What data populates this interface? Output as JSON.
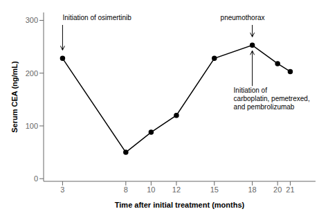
{
  "chart_data": {
    "type": "line",
    "x": [
      3,
      8,
      10,
      12,
      15,
      18,
      20,
      21
    ],
    "values": [
      228,
      50,
      88,
      120,
      228,
      253,
      218,
      203
    ],
    "xlim": [
      1.5,
      23
    ],
    "ylim": [
      -5,
      315
    ],
    "xticks": [
      3,
      8,
      10,
      12,
      15,
      18,
      20,
      21
    ],
    "yticks": [
      0,
      100,
      200,
      300
    ],
    "xlabel": "Time after initial treatment (months)",
    "ylabel": "Serum CEA (ng/mL)",
    "color": "#000000",
    "marker": "circle",
    "grid": false,
    "annotations": [
      {
        "text": "Initiation of osimertinib",
        "x": 3
      },
      {
        "text": "pneumothorax",
        "x": 18
      },
      {
        "text": "Initiation of\ncarboplatin, pemetrexed,\nand pembrolizumab",
        "x": 18
      }
    ]
  }
}
